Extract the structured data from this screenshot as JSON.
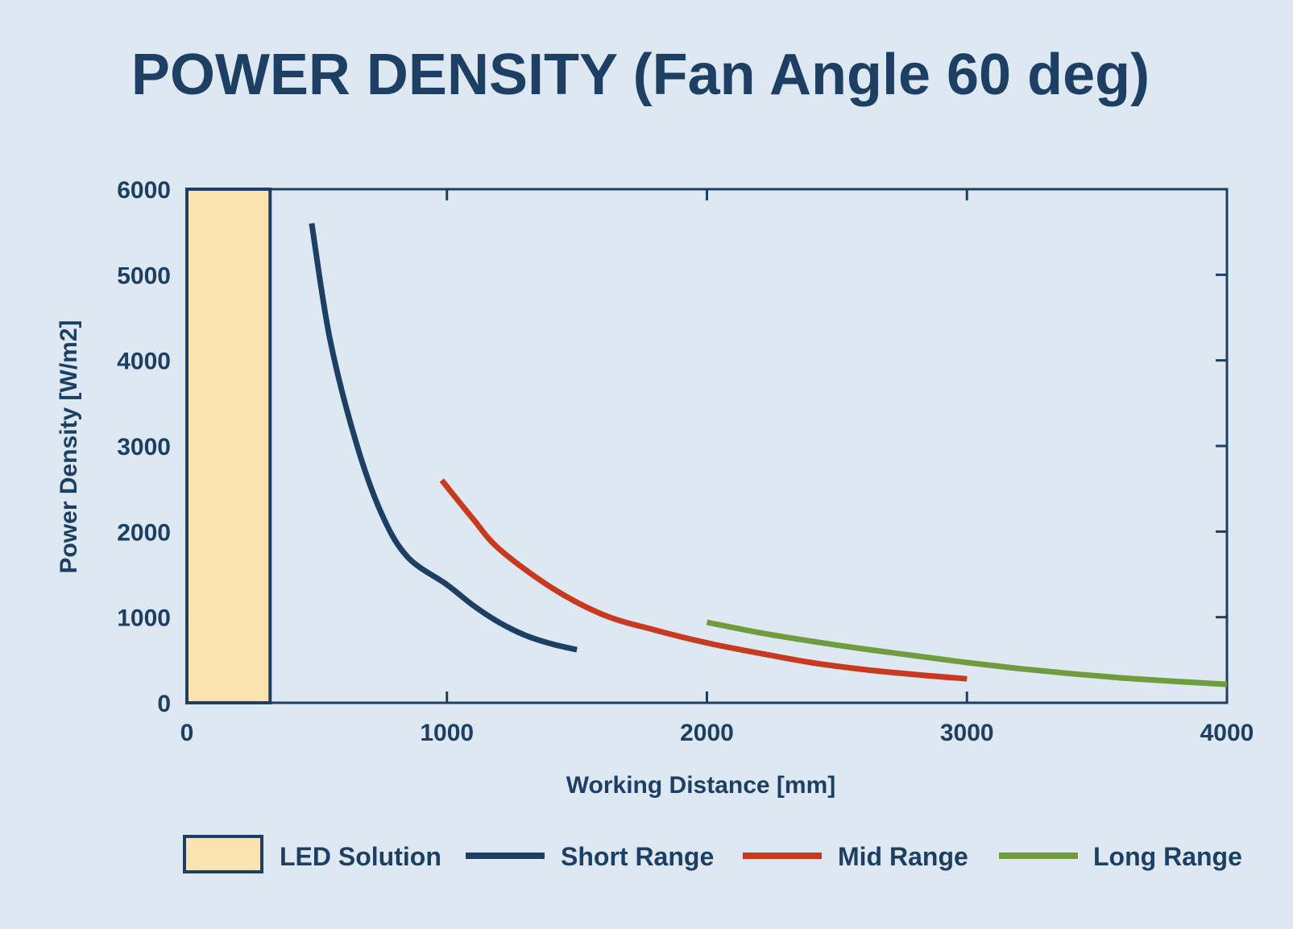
{
  "chart_data": {
    "type": "line",
    "title": "POWER DENSITY (Fan Angle 60 deg)",
    "xlabel": "Working Distance [mm]",
    "ylabel": "Power Density [W/m2]",
    "xlim": [
      0,
      4000
    ],
    "ylim": [
      0,
      6000
    ],
    "x_ticks": [
      0,
      1000,
      2000,
      3000,
      4000
    ],
    "y_ticks": [
      0,
      1000,
      2000,
      3000,
      4000,
      5000,
      6000
    ],
    "x_tick_labels": [
      "0",
      "1000",
      "2000",
      "3000",
      "4000"
    ],
    "y_tick_labels": [
      "0",
      "1000",
      "2000",
      "3000",
      "4000",
      "5000",
      "6000"
    ],
    "grid": false,
    "legend_position": "bottom",
    "regions": [
      {
        "name": "LED Solution",
        "x_start": 0,
        "x_end": 320,
        "y_start": 0,
        "y_end": 6000,
        "color": "#fde3b0",
        "border_color": "#1c3f63"
      }
    ],
    "series": [
      {
        "name": "Short Range",
        "color": "#1c3f63",
        "x": [
          480,
          550,
          650,
          750,
          850,
          1000,
          1100,
          1200,
          1300,
          1400,
          1500
        ],
        "y": [
          5600,
          4250,
          3050,
          2200,
          1700,
          1380,
          1140,
          940,
          790,
          690,
          620
        ]
      },
      {
        "name": "Mid Range",
        "color": "#c8391e",
        "x": [
          980,
          1100,
          1200,
          1400,
          1600,
          1800,
          2000,
          2200,
          2400,
          2600,
          2800,
          3000
        ],
        "y": [
          2600,
          2150,
          1800,
          1350,
          1030,
          850,
          700,
          580,
          470,
          390,
          330,
          280
        ]
      },
      {
        "name": "Long Range",
        "color": "#6f9c3c",
        "x": [
          2000,
          2200,
          2400,
          2600,
          2800,
          3000,
          3200,
          3400,
          3600,
          3800,
          4000
        ],
        "y": [
          940,
          820,
          720,
          630,
          550,
          470,
          400,
          340,
          290,
          250,
          215
        ]
      }
    ],
    "legend": [
      {
        "label": "LED Solution",
        "kind": "box",
        "color": "#fde3b0"
      },
      {
        "label": "Short Range",
        "kind": "line",
        "color": "#1c3f63"
      },
      {
        "label": "Mid Range",
        "kind": "line",
        "color": "#c8391e"
      },
      {
        "label": "Long Range",
        "kind": "line",
        "color": "#6f9c3c"
      }
    ],
    "axis_color": "#1c3f63",
    "text_color": "#1c3f63"
  }
}
